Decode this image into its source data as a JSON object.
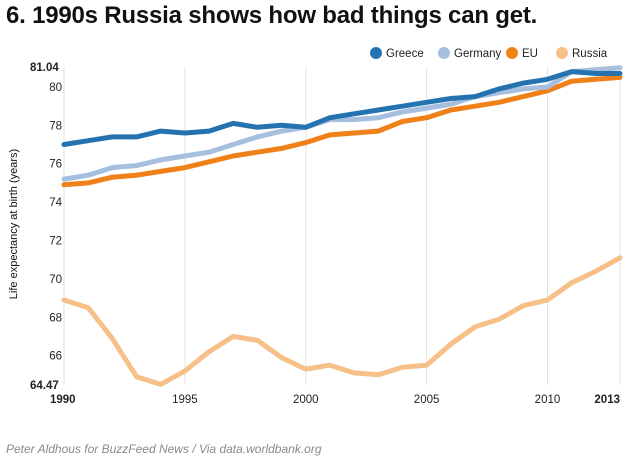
{
  "title": "6. 1990s Russia shows how bad things can get.",
  "source": "Peter Aldhous for BuzzFeed News / Via data.worldbank.org",
  "chart_data": {
    "type": "line",
    "ylabel": "Life expectancy at birth (years)",
    "xlabel": "",
    "xlim": [
      1990,
      2013
    ],
    "ylim": [
      64.47,
      81.04
    ],
    "x_ticks": [
      "1990",
      "1995",
      "2000",
      "2005",
      "2010",
      "2013"
    ],
    "y_ticks": [
      "64.47",
      "66",
      "68",
      "70",
      "72",
      "74",
      "76",
      "78",
      "80",
      "81.04"
    ],
    "grid": "vertical",
    "legend_position": "top-right",
    "x": [
      1990,
      1991,
      1992,
      1993,
      1994,
      1995,
      1996,
      1997,
      1998,
      1999,
      2000,
      2001,
      2002,
      2003,
      2004,
      2005,
      2006,
      2007,
      2008,
      2009,
      2010,
      2011,
      2012,
      2013
    ],
    "series": [
      {
        "name": "Greece",
        "color": "#2473b0",
        "values": [
          77.0,
          77.2,
          77.4,
          77.4,
          77.7,
          77.6,
          77.7,
          78.1,
          77.9,
          78.0,
          77.9,
          78.4,
          78.6,
          78.8,
          79.0,
          79.2,
          79.4,
          79.5,
          79.9,
          80.2,
          80.4,
          80.8,
          80.7,
          80.7
        ]
      },
      {
        "name": "Germany",
        "color": "#a7bfde",
        "values": [
          75.2,
          75.4,
          75.8,
          75.9,
          76.2,
          76.4,
          76.6,
          77.0,
          77.4,
          77.7,
          77.9,
          78.3,
          78.3,
          78.4,
          78.7,
          78.9,
          79.1,
          79.5,
          79.7,
          79.9,
          80.0,
          80.8,
          80.9,
          81.0
        ]
      },
      {
        "name": "EU",
        "color": "#f08119",
        "values": [
          74.9,
          75.0,
          75.3,
          75.4,
          75.6,
          75.8,
          76.1,
          76.4,
          76.6,
          76.8,
          77.1,
          77.5,
          77.6,
          77.7,
          78.2,
          78.4,
          78.8,
          79.0,
          79.2,
          79.5,
          79.8,
          80.3,
          80.4,
          80.5
        ]
      },
      {
        "name": "Russia",
        "color": "#f6c088",
        "values": [
          68.9,
          68.5,
          66.9,
          64.9,
          64.5,
          65.2,
          66.2,
          67.0,
          66.8,
          65.9,
          65.3,
          65.5,
          65.1,
          65.0,
          65.4,
          65.5,
          66.6,
          67.5,
          67.9,
          68.6,
          68.9,
          69.8,
          70.4,
          71.1
        ]
      }
    ]
  }
}
